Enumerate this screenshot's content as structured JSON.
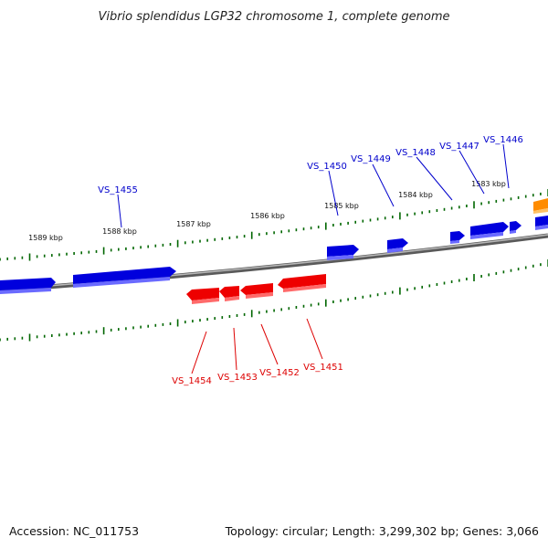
{
  "title": "Vibrio splendidus LGP32 chromosome 1, complete genome",
  "footer": {
    "accession": "Accession: NC_011753",
    "summary": "Topology: circular; Length: 3,299,302 bp; Genes: 3,066"
  },
  "kbp_labels": [
    "1589 kbp",
    "1588 kbp",
    "1587 kbp",
    "1586 kbp",
    "1585 kbp",
    "1584 kbp",
    "1583 kbp"
  ],
  "forward_gene_labels": [
    "VS_1455",
    "VS_1450",
    "VS_1449",
    "VS_1448",
    "VS_1447",
    "VS_1446"
  ],
  "reverse_gene_labels": [
    "VS_1454",
    "VS_1453",
    "VS_1452",
    "VS_1451"
  ],
  "colors": {
    "forward_gene": "#0000dd",
    "reverse_gene": "#ee0000",
    "other_gene": "#ff8c00",
    "backbone": "#888888",
    "ticks": "#006600",
    "forward_label": "#0000cc",
    "reverse_label": "#dd0000"
  }
}
